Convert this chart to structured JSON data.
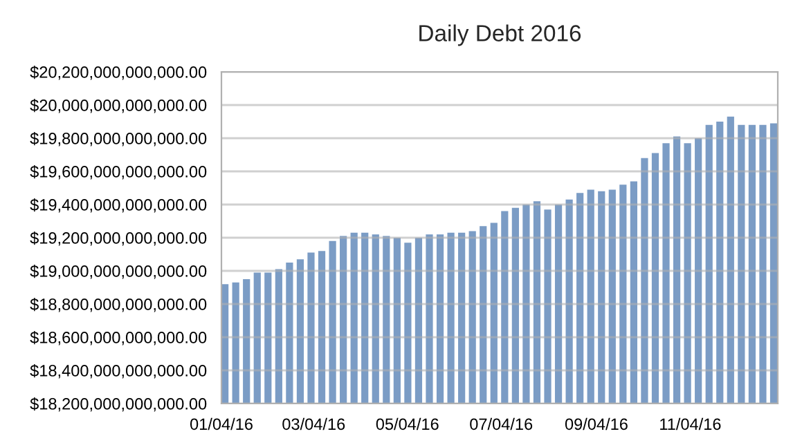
{
  "chart_data": {
    "type": "bar",
    "title": "Daily Debt 2016",
    "color": "#7b9cc5",
    "x": [
      "2016-01-04",
      "2016-01-11",
      "2016-01-18",
      "2016-01-25",
      "2016-02-01",
      "2016-02-08",
      "2016-02-15",
      "2016-02-22",
      "2016-02-29",
      "2016-03-07",
      "2016-03-14",
      "2016-03-21",
      "2016-03-28",
      "2016-04-04",
      "2016-04-11",
      "2016-04-18",
      "2016-04-25",
      "2016-05-02",
      "2016-05-09",
      "2016-05-16",
      "2016-05-23",
      "2016-05-30",
      "2016-06-06",
      "2016-06-13",
      "2016-06-20",
      "2016-06-27",
      "2016-07-04",
      "2016-07-11",
      "2016-07-18",
      "2016-07-25",
      "2016-08-01",
      "2016-08-08",
      "2016-08-15",
      "2016-08-22",
      "2016-08-29",
      "2016-09-05",
      "2016-09-12",
      "2016-09-19",
      "2016-09-26",
      "2016-10-03",
      "2016-10-10",
      "2016-10-17",
      "2016-10-24",
      "2016-10-31",
      "2016-11-07",
      "2016-11-14",
      "2016-11-21",
      "2016-11-28",
      "2016-12-05",
      "2016-12-12",
      "2016-12-19",
      "2016-12-26"
    ],
    "values": [
      18920000000000,
      18930000000000,
      18950000000000,
      18990000000000,
      18990000000000,
      19010000000000,
      19050000000000,
      19070000000000,
      19110000000000,
      19120000000000,
      19180000000000,
      19210000000000,
      19230000000000,
      19230000000000,
      19220000000000,
      19210000000000,
      19200000000000,
      19170000000000,
      19200000000000,
      19220000000000,
      19220000000000,
      19230000000000,
      19230000000000,
      19240000000000,
      19270000000000,
      19290000000000,
      19360000000000,
      19380000000000,
      19400000000000,
      19420000000000,
      19370000000000,
      19400000000000,
      19430000000000,
      19470000000000,
      19490000000000,
      19480000000000,
      19490000000000,
      19520000000000,
      19540000000000,
      19680000000000,
      19710000000000,
      19770000000000,
      19810000000000,
      19770000000000,
      19800000000000,
      19880000000000,
      19900000000000,
      19930000000000,
      19880000000000,
      19880000000000,
      19880000000000,
      19890000000000
    ],
    "ylim": [
      18200000000000,
      20200000000000
    ],
    "yticks": [
      {
        "value": 18200000000000,
        "label": "$18,200,000,000,000.00"
      },
      {
        "value": 18400000000000,
        "label": "$18,400,000,000,000.00"
      },
      {
        "value": 18600000000000,
        "label": "$18,600,000,000,000.00"
      },
      {
        "value": 18800000000000,
        "label": "$18,800,000,000,000.00"
      },
      {
        "value": 19000000000000,
        "label": "$19,000,000,000,000.00"
      },
      {
        "value": 19200000000000,
        "label": "$19,200,000,000,000.00"
      },
      {
        "value": 19400000000000,
        "label": "$19,400,000,000,000.00"
      },
      {
        "value": 19600000000000,
        "label": "$19,600,000,000,000.00"
      },
      {
        "value": 19800000000000,
        "label": "$19,800,000,000,000.00"
      },
      {
        "value": 20000000000000,
        "label": "$20,000,000,000,000.00"
      },
      {
        "value": 20200000000000,
        "label": "$20,200,000,000,000.00"
      }
    ],
    "xlim": [
      "2016-01-04",
      "2016-12-31"
    ],
    "xticks": [
      {
        "value": "2016-01-04",
        "label": "01/04/16"
      },
      {
        "value": "2016-03-04",
        "label": "03/04/16"
      },
      {
        "value": "2016-05-04",
        "label": "05/04/16"
      },
      {
        "value": "2016-07-04",
        "label": "07/04/16"
      },
      {
        "value": "2016-09-04",
        "label": "09/04/16"
      },
      {
        "value": "2016-11-04",
        "label": "11/04/16"
      }
    ],
    "grid": "y"
  }
}
